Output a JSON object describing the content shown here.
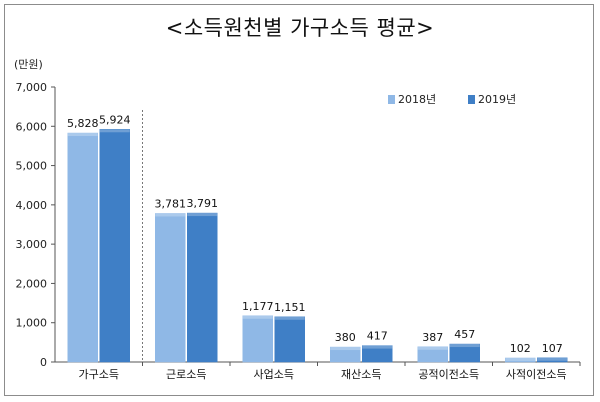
{
  "chart_data": {
    "type": "bar",
    "title": "<소득원천별 가구소득 평균>",
    "unit_label": "(만원)",
    "categories": [
      "가구소득",
      "근로소득",
      "사업소득",
      "재산소득",
      "공적이전소득",
      "사적이전소득"
    ],
    "series": [
      {
        "name": "2018년",
        "values": [
          5828,
          3781,
          1177,
          380,
          387,
          102
        ],
        "color": "#8fb8e6",
        "value_labels": [
          "5,828",
          "3,781",
          "1,177",
          "380",
          "387",
          "102"
        ]
      },
      {
        "name": "2019년",
        "values": [
          5924,
          3791,
          1151,
          417,
          457,
          107
        ],
        "color": "#3f7fc6",
        "value_labels": [
          "5,924",
          "3,791",
          "1,151",
          "417",
          "457",
          "107"
        ]
      }
    ],
    "y_ticks": [
      "0",
      "1,000",
      "2,000",
      "3,000",
      "4,000",
      "5,000",
      "6,000",
      "7,000"
    ],
    "ylim": [
      0,
      7000
    ],
    "legend_position": "top-right",
    "grid": false
  }
}
